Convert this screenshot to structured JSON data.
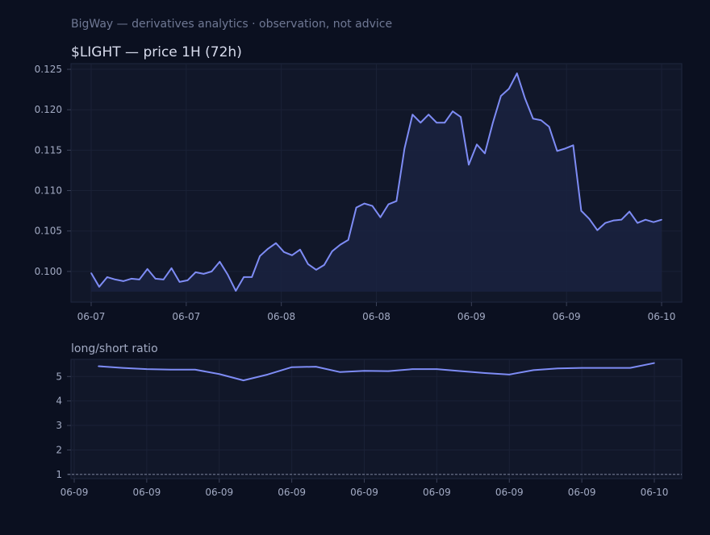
{
  "header": {
    "caption": "BigWay — derivatives analytics · observation, not advice"
  },
  "colors": {
    "background": "#0b1020",
    "panel": "#111729",
    "line": "#7e8cf5",
    "fill": "#1a2240",
    "text": "#a3abc4"
  },
  "chart_data": [
    {
      "type": "area",
      "title": "$LIGHT — price 1H (72h)",
      "xlabel": "",
      "ylabel": "",
      "x_tick_labels": [
        "06-07",
        "06-07",
        "06-08",
        "06-08",
        "06-09",
        "06-09",
        "06-10"
      ],
      "y_ticks": [
        0.1,
        0.105,
        0.11,
        0.115,
        0.12,
        0.125
      ],
      "y_tick_labels": [
        "0.100",
        "0.105",
        "0.110",
        "0.115",
        "0.120",
        "0.125"
      ],
      "ylim": [
        0.0962,
        0.1257
      ],
      "fill_baseline": 0.0975,
      "grid": true,
      "x_range": [
        0,
        72
      ],
      "series": [
        {
          "values": [
            0.0998,
            0.0981,
            0.0993,
            0.099,
            0.0988,
            0.0991,
            0.099,
            0.1003,
            0.0991,
            0.099,
            0.1004,
            0.0987,
            0.0989,
            0.0999,
            0.0997,
            0.1,
            0.1012,
            0.0996,
            0.0976,
            0.0993,
            0.0993,
            0.1019,
            0.1028,
            0.1035,
            0.1024,
            0.102,
            0.1027,
            0.1009,
            0.1002,
            0.1008,
            0.1025,
            0.1033,
            0.1039,
            0.1079,
            0.1084,
            0.1081,
            0.1067,
            0.1083,
            0.1087,
            0.1152,
            0.1194,
            0.1184,
            0.1194,
            0.1184,
            0.1184,
            0.1198,
            0.1191,
            0.1132,
            0.1157,
            0.1146,
            0.1184,
            0.1217,
            0.1226,
            0.1245,
            0.1214,
            0.1189,
            0.1187,
            0.1179,
            0.1149,
            0.1152,
            0.1156,
            0.1075,
            0.1065,
            0.1051,
            0.106,
            0.1063,
            0.1064,
            0.1074,
            0.106,
            0.1064,
            0.1061,
            0.1064
          ]
        }
      ]
    },
    {
      "type": "line",
      "title": "long/short ratio",
      "xlabel": "",
      "ylabel": "",
      "x_tick_labels": [
        "06-09",
        "06-09",
        "06-09",
        "06-09",
        "06-09",
        "06-09",
        "06-09",
        "06-09",
        "06-10"
      ],
      "y_ticks": [
        1,
        2,
        3,
        4,
        5
      ],
      "ylim": [
        0.83,
        5.7
      ],
      "reference_line": 1,
      "grid": true,
      "x_range": [
        0,
        24
      ],
      "series": [
        {
          "x": [
            1,
            2,
            3,
            4,
            5,
            6,
            7,
            8,
            9,
            10,
            11,
            12,
            13,
            14,
            15,
            16,
            17,
            18,
            19,
            20,
            21,
            22,
            23,
            24
          ],
          "values": [
            5.42,
            5.35,
            5.3,
            5.28,
            5.28,
            5.1,
            4.84,
            5.08,
            5.38,
            5.4,
            5.18,
            5.23,
            5.22,
            5.3,
            5.3,
            5.22,
            5.14,
            5.08,
            5.26,
            5.33,
            5.35,
            5.35,
            5.35,
            5.55
          ]
        }
      ]
    }
  ]
}
